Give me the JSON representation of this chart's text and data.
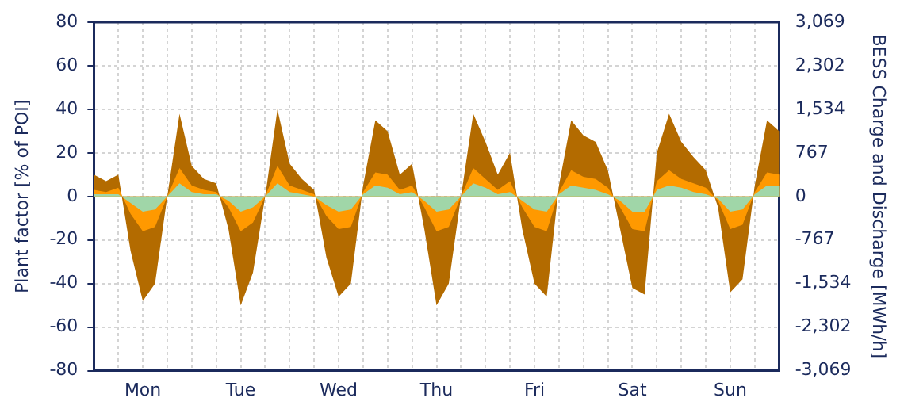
{
  "chart_data": {
    "type": "area",
    "ylabel": "Plant factor [% of POI]",
    "y2label": "BESS Charge and Discharge [MWh/h]",
    "categories": [
      null,
      null,
      null,
      null,
      "Mon",
      null,
      null,
      null,
      null,
      null,
      null,
      null,
      "Tue",
      null,
      null,
      null,
      null,
      null,
      null,
      null,
      "Wed",
      null,
      null,
      null,
      null,
      null,
      null,
      null,
      "Thu",
      null,
      null,
      null,
      null,
      null,
      null,
      null,
      "Fri",
      null,
      null,
      null,
      null,
      null,
      null,
      null,
      "Sat",
      null,
      null,
      null,
      null,
      null,
      null,
      null,
      "Sun",
      null,
      null,
      null,
      null
    ],
    "ylim": [
      -80,
      80
    ],
    "yticks": [
      -80,
      -60,
      -40,
      -20,
      0,
      20,
      40,
      60,
      80
    ],
    "y2lim": [
      -3069,
      3069
    ],
    "y2ticks": [
      {
        "value": -3069,
        "label": "-3,069"
      },
      {
        "value": -2302,
        "label": "-2,302"
      },
      {
        "value": -1534,
        "label": "-1,534"
      },
      -767,
      0,
      767,
      {
        "value": 1534,
        "label": "1,534"
      },
      {
        "value": 2302,
        "label": "2,302"
      },
      {
        "value": 3069,
        "label": "3,069"
      }
    ],
    "grid": true,
    "series": [
      {
        "color": "#b36b00",
        "values": [
          10,
          7,
          10,
          -25,
          -48,
          -40,
          0,
          38,
          14,
          8,
          6,
          -15,
          -50,
          -35,
          0,
          40,
          15,
          8,
          3,
          -28,
          -46,
          -40,
          5,
          35,
          30,
          10,
          15,
          -15,
          -50,
          -40,
          0,
          38,
          25,
          10,
          20,
          -15,
          -40,
          -46,
          5,
          35,
          28,
          25,
          12,
          -15,
          -42,
          -45,
          20,
          38,
          25,
          18,
          12,
          -5,
          -44,
          -38,
          5,
          35,
          30
        ]
      },
      {
        "color": "#ff9900",
        "values": [
          3,
          2,
          4,
          -8,
          -16,
          -14,
          0,
          13,
          5,
          3,
          2,
          -5,
          -16,
          -12,
          0,
          14,
          5,
          3,
          1,
          -9,
          -15,
          -14,
          2,
          11,
          10,
          3,
          5,
          -5,
          -16,
          -14,
          0,
          13,
          8,
          3,
          7,
          -5,
          -14,
          -16,
          2,
          12,
          9,
          8,
          4,
          -5,
          -15,
          -16,
          7,
          12,
          8,
          6,
          4,
          -2,
          -15,
          -13,
          2,
          11,
          10
        ]
      },
      {
        "color": "#a0d6a8",
        "values": [
          1,
          1,
          1,
          -3,
          -7,
          -6,
          0,
          6,
          2,
          1,
          1,
          -2,
          -7,
          -5,
          0,
          6,
          2,
          1,
          0,
          -4,
          -7,
          -6,
          1,
          5,
          4,
          1,
          2,
          -2,
          -7,
          -6,
          0,
          6,
          4,
          1,
          2,
          -2,
          -6,
          -7,
          1,
          5,
          4,
          3,
          1,
          -2,
          -7,
          -7,
          3,
          5,
          4,
          2,
          1,
          -1,
          -7,
          -6,
          1,
          5,
          5
        ]
      }
    ]
  }
}
